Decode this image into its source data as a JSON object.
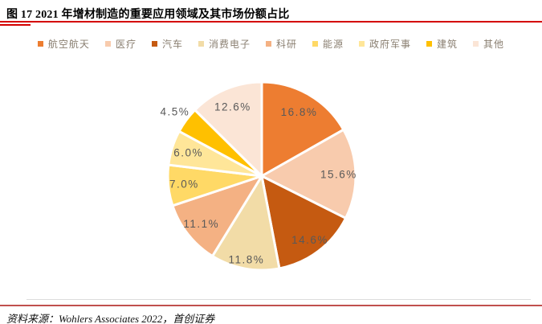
{
  "title": {
    "text": "图 17 2021 年增材制造的重要应用领域及其市场份额占比"
  },
  "accents": {
    "title_rule_color": "#d40000",
    "footer_rule_color": "#c0504d"
  },
  "chart_data": {
    "type": "pie",
    "categories": [
      "航空航天",
      "医疗",
      "汽车",
      "消费电子",
      "科研",
      "能源",
      "政府军事",
      "建筑",
      "其他"
    ],
    "values": [
      16.8,
      15.6,
      14.6,
      11.8,
      11.1,
      7.0,
      6.0,
      4.5,
      12.6
    ],
    "data_labels": [
      "16.8%",
      "15.6%",
      "14.6%",
      "11.8%",
      "11.1%",
      "7.0%",
      "6.0%",
      "4.5%",
      "12.6%"
    ],
    "colors": [
      "#ED7D31",
      "#F8CBAD",
      "#C55A11",
      "#F2DCA7",
      "#F4B183",
      "#FFD966",
      "#FFE699",
      "#FFC000",
      "#FBE5D6"
    ],
    "title": "",
    "legend_position": "top",
    "start_angle_deg": 0,
    "direction": "clockwise",
    "label_color": "#595959",
    "slice_border_color": "#FFFFFF",
    "label_radius": [
      0.79,
      0.82,
      0.85,
      0.9,
      0.82,
      0.83,
      0.82,
      1.15,
      0.8
    ]
  },
  "footer": {
    "source": "资料来源：Wohlers Associates 2022，首创证券"
  }
}
